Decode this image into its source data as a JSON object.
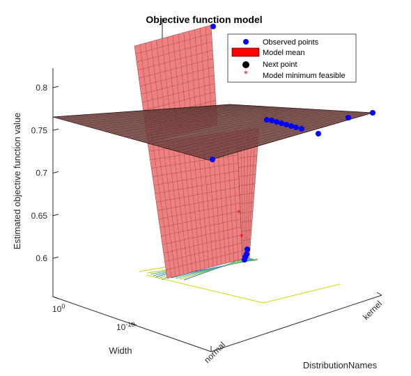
{
  "chart_data": {
    "type": "surface",
    "title": "Objective function model",
    "zlabel": "Estimated objective function value",
    "xlabel": "Width",
    "ylabel": "DistributionNames",
    "z_ticks": [
      {
        "label": "0.8",
        "value": 0.8
      },
      {
        "label": "0.75",
        "value": 0.75
      },
      {
        "label": "0.7",
        "value": 0.7
      },
      {
        "label": "0.65",
        "value": 0.65
      },
      {
        "label": "0.6",
        "value": 0.6
      }
    ],
    "z_range": [
      0.575,
      0.82
    ],
    "width_ticks": [
      {
        "label": "10",
        "exp": "0"
      },
      {
        "label": "10",
        "exp": "-10"
      }
    ],
    "category_ticks": [
      "normal",
      "kernel"
    ],
    "legend": {
      "placement": "top-right",
      "entries": [
        {
          "label": "Observed points",
          "marker": "dot",
          "color": "#0000ff"
        },
        {
          "label": "Model mean",
          "marker": "patch",
          "color": "#ff0000"
        },
        {
          "label": "Next point",
          "marker": "dot",
          "color": "#000000"
        },
        {
          "label": "Model minimum feasible",
          "marker": "star",
          "color": "#ff0000"
        }
      ]
    },
    "surface_colors": {
      "face": "#f08080",
      "edge": "#3a1a1a"
    },
    "contour_colors": [
      "#d4d400",
      "#a8cc2a",
      "#5ab96a",
      "#2aa5a5",
      "#3b77c0"
    ],
    "observed_points": [
      {
        "category": "normal",
        "value": 0.815
      },
      {
        "category": "normal",
        "value": 0.716
      },
      {
        "category": "normal",
        "value": 0.611
      },
      {
        "category": "normal",
        "value": 0.603
      },
      {
        "category": "normal",
        "value": 0.6
      },
      {
        "category": "normal",
        "value": 0.597
      },
      {
        "category": "kernel",
        "value": 0.762
      },
      {
        "category": "kernel",
        "value": 0.759
      },
      {
        "category": "kernel",
        "value": 0.757
      },
      {
        "category": "kernel",
        "value": 0.754
      },
      {
        "category": "kernel",
        "value": 0.751
      },
      {
        "category": "kernel",
        "value": 0.748
      },
      {
        "category": "kernel",
        "value": 0.745
      },
      {
        "category": "kernel",
        "value": 0.741
      },
      {
        "category": "kernel",
        "value": 0.749
      },
      {
        "category": "kernel",
        "value": 0.765
      },
      {
        "category": "kernel",
        "value": 0.772
      }
    ],
    "model_minimum_points": [
      {
        "category": "normal",
        "value": 0.651
      },
      {
        "category": "normal",
        "value": 0.625
      }
    ],
    "grid": false,
    "box": true
  }
}
